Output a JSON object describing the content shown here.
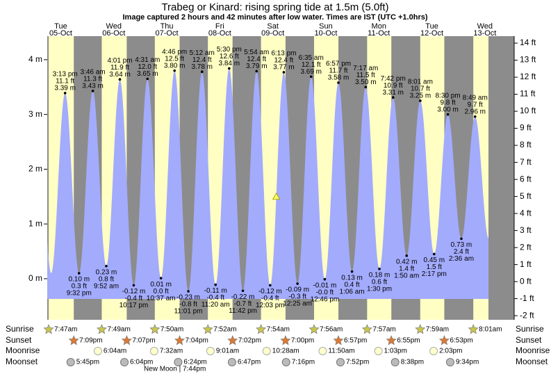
{
  "chart_data": {
    "type": "tide",
    "title": "Trabeg or Kinard: rising  spring tide at 1.5m (5.0ft)",
    "subtitle": "Image captured 2 hours and 42 minutes after low water. Times are IST (UTC +1.0hrs)",
    "current_level": 1.5,
    "ylim": [
      -0.75,
      4.43
    ],
    "yticks": [
      {
        "value": 0,
        "label": "0 m"
      },
      {
        "value": 1,
        "label": "1 m"
      },
      {
        "value": 2,
        "label": "2 m"
      },
      {
        "value": 3,
        "label": "3 m"
      },
      {
        "value": 4,
        "label": "4 m"
      }
    ],
    "y2lim": [
      -2.24,
      14.41
    ],
    "y2ticks": [
      {
        "value": -2,
        "label": "-2 ft"
      },
      {
        "value": -1,
        "label": "-1 ft"
      },
      {
        "value": 0,
        "label": "0 ft"
      },
      {
        "value": 1,
        "label": "1 ft"
      },
      {
        "value": 2,
        "label": "2 ft"
      },
      {
        "value": 3,
        "label": "3 ft"
      },
      {
        "value": 4,
        "label": "4 ft"
      },
      {
        "value": 5,
        "label": "5 ft"
      },
      {
        "value": 6,
        "label": "6 ft"
      },
      {
        "value": 7,
        "label": "7 ft"
      },
      {
        "value": 8,
        "label": "8 ft"
      },
      {
        "value": 9,
        "label": "9 ft"
      },
      {
        "value": 10,
        "label": "10 ft"
      },
      {
        "value": 11,
        "label": "11 ft"
      },
      {
        "value": 12,
        "label": "12 ft"
      },
      {
        "value": 13,
        "label": "13 ft"
      },
      {
        "value": 14,
        "label": "14 ft"
      }
    ],
    "colors": {
      "water": "#a3abfd",
      "day": "#ffffc4",
      "night": "#8c8c8c",
      "date": "#cc0000"
    },
    "row_labels": {
      "sunrise": "Sunrise",
      "sunset": "Sunset",
      "moonrise": "Moonrise",
      "moonset": "Moonset"
    },
    "new_moon": "New Moon | 7:44pm",
    "days": [
      {
        "name": "Tue",
        "date": "05-Oct",
        "sunrise": "7:47am",
        "sunset": "7:09pm",
        "moonset": "5:45pm",
        "tides": [
          {
            "time": "3:13 pm",
            "ft": {
              "value": 11.1,
              "label": "11.1 ft"
            },
            "m": {
              "value": 3.39,
              "label": "3.39 m"
            }
          },
          {
            "time": "9:32 pm",
            "ft": {
              "value": 0.3,
              "label": "0.3 ft"
            },
            "m": {
              "value": 0.1,
              "label": "0.10 m"
            }
          }
        ]
      },
      {
        "name": "Wed",
        "date": "06-Oct",
        "sunrise": "7:49am",
        "sunset": "7:07pm",
        "moonrise": "6:04am",
        "moonset": "6:04pm",
        "tides": [
          {
            "time": "3:46 am",
            "ft": {
              "value": 11.3,
              "label": "11.3 ft"
            },
            "m": {
              "value": 3.43,
              "label": "3.43 m"
            }
          },
          {
            "time": "9:52 am",
            "ft": {
              "value": 0.8,
              "label": "0.8 ft"
            },
            "m": {
              "value": 0.23,
              "label": "0.23 m"
            }
          },
          {
            "time": "4:01 pm",
            "ft": {
              "value": 11.9,
              "label": "11.9 ft"
            },
            "m": {
              "value": 3.64,
              "label": "3.64 m"
            }
          },
          {
            "time": "10:17 pm",
            "ft": {
              "value": -0.4,
              "label": "-0.4 ft"
            },
            "m": {
              "value": -0.12,
              "label": "-0.12 m"
            }
          }
        ]
      },
      {
        "name": "Thu",
        "date": "07-Oct",
        "sunrise": "7:50am",
        "sunset": "7:04pm",
        "moonrise": "7:32am",
        "moonset": "6:24pm",
        "tides": [
          {
            "time": "4:31 am",
            "ft": {
              "value": 12.0,
              "label": "12.0 ft"
            },
            "m": {
              "value": 3.65,
              "label": "3.65 m"
            }
          },
          {
            "time": "10:37 am",
            "ft": {
              "value": 0,
              "label": "0.0 ft"
            },
            "m": {
              "value": 0.01,
              "label": "0.01 m"
            }
          },
          {
            "time": "4:46 pm",
            "ft": {
              "value": 12.5,
              "label": "12.5 ft"
            },
            "m": {
              "value": 3.8,
              "label": "3.80 m"
            }
          },
          {
            "time": "11:01 pm",
            "ft": {
              "value": -0.8,
              "label": "-0.8 ft"
            },
            "m": {
              "value": -0.23,
              "label": "-0.23 m"
            }
          }
        ]
      },
      {
        "name": "Fri",
        "date": "08-Oct",
        "sunrise": "7:52am",
        "sunset": "7:02pm",
        "moonrise": "9:01am",
        "moonset": "6:47pm",
        "tides": [
          {
            "time": "5:12 am",
            "ft": {
              "value": 12.4,
              "label": "12.4 ft"
            },
            "m": {
              "value": 3.78,
              "label": "3.78 m"
            }
          },
          {
            "time": "11:20 am",
            "ft": {
              "value": -0.4,
              "label": "-0.4 ft"
            },
            "m": {
              "value": -0.11,
              "label": "-0.11 m"
            }
          },
          {
            "time": "5:30 pm",
            "ft": {
              "value": 12.6,
              "label": "12.6 ft"
            },
            "m": {
              "value": 3.84,
              "label": "3.84 m"
            }
          },
          {
            "time": "11:42 pm",
            "ft": {
              "value": -0.7,
              "label": "-0.7 ft"
            },
            "m": {
              "value": -0.22,
              "label": "-0.22 m"
            }
          }
        ]
      },
      {
        "name": "Sat",
        "date": "09-Oct",
        "sunrise": "7:54am",
        "sunset": "7:00pm",
        "moonrise": "10:28am",
        "moonset": "7:16pm",
        "tides": [
          {
            "time": "5:54 am",
            "ft": {
              "value": 12.4,
              "label": "12.4 ft"
            },
            "m": {
              "value": 3.79,
              "label": "3.79 m"
            }
          },
          {
            "time": "12:03 pm",
            "ft": {
              "value": -0.4,
              "label": "-0.4 ft"
            },
            "m": {
              "value": -0.12,
              "label": "-0.12 m"
            }
          },
          {
            "time": "6:13 pm",
            "ft": {
              "value": 12.4,
              "label": "12.4 ft"
            },
            "m": {
              "value": 3.77,
              "label": "3.77 m"
            }
          }
        ]
      },
      {
        "name": "Sun",
        "date": "10-Oct",
        "sunrise": "7:56am",
        "sunset": "6:57pm",
        "moonrise": "11:50am",
        "moonset": "7:52pm",
        "tides": [
          {
            "time": "12:25 am",
            "ft": {
              "value": -0.3,
              "label": "-0.3 ft"
            },
            "m": {
              "value": -0.09,
              "label": "-0.09 m"
            }
          },
          {
            "time": "6:35 am",
            "ft": {
              "value": 12.1,
              "label": "12.1 ft"
            },
            "m": {
              "value": 3.69,
              "label": "3.69 m"
            }
          },
          {
            "time": "12:46 pm",
            "ft": {
              "value": 0,
              "label": "-0.0 ft"
            },
            "m": {
              "value": -0.01,
              "label": "-0.01 m"
            }
          },
          {
            "time": "6:57 pm",
            "ft": {
              "value": 11.7,
              "label": "11.7 ft"
            },
            "m": {
              "value": 3.58,
              "label": "3.58 m"
            }
          }
        ]
      },
      {
        "name": "Mon",
        "date": "11-Oct",
        "sunrise": "7:57am",
        "sunset": "6:55pm",
        "moonrise": "1:03pm",
        "moonset": "8:38pm",
        "tides": [
          {
            "time": "1:06 am",
            "ft": {
              "value": 0.4,
              "label": "0.4 ft"
            },
            "m": {
              "value": 0.13,
              "label": "0.13 m"
            }
          },
          {
            "time": "7:17 am",
            "ft": {
              "value": 11.5,
              "label": "11.5 ft"
            },
            "m": {
              "value": 3.5,
              "label": "3.50 m"
            }
          },
          {
            "time": "1:30 pm",
            "ft": {
              "value": 0.6,
              "label": "0.6 ft"
            },
            "m": {
              "value": 0.18,
              "label": "0.18 m"
            }
          },
          {
            "time": "7:42 pm",
            "ft": {
              "value": 10.9,
              "label": "10.9 ft"
            },
            "m": {
              "value": 3.31,
              "label": "3.31 m"
            }
          }
        ]
      },
      {
        "name": "Tue",
        "date": "12-Oct",
        "sunrise": "7:59am",
        "sunset": "6:53pm",
        "moonrise": "2:03pm",
        "moonset": "9:34pm",
        "tides": [
          {
            "time": "1:50 am",
            "ft": {
              "value": 1.4,
              "label": "1.4 ft"
            },
            "m": {
              "value": 0.42,
              "label": "0.42 m"
            }
          },
          {
            "time": "8:01 am",
            "ft": {
              "value": 10.7,
              "label": "10.7 ft"
            },
            "m": {
              "value": 3.25,
              "label": "3.25 m"
            }
          },
          {
            "time": "2:17 pm",
            "ft": {
              "value": 1.5,
              "label": "1.5 ft"
            },
            "m": {
              "value": 0.45,
              "label": "0.45 m"
            }
          },
          {
            "time": "8:30 pm",
            "ft": {
              "value": 9.8,
              "label": "9.8 ft"
            },
            "m": {
              "value": 3.0,
              "label": "3.00 m"
            }
          }
        ]
      },
      {
        "name": "Wed",
        "date": "13-Oct",
        "sunrise": "8:01am",
        "tides": [
          {
            "time": "2:36 am",
            "ft": {
              "value": 2.4,
              "label": "2.4 ft"
            },
            "m": {
              "value": 0.73,
              "label": "0.73 m"
            }
          },
          {
            "time": "8:49 am",
            "ft": {
              "value": 9.7,
              "label": "9.7 ft"
            },
            "m": {
              "value": 2.96,
              "label": "2.96 m"
            }
          }
        ]
      }
    ]
  }
}
